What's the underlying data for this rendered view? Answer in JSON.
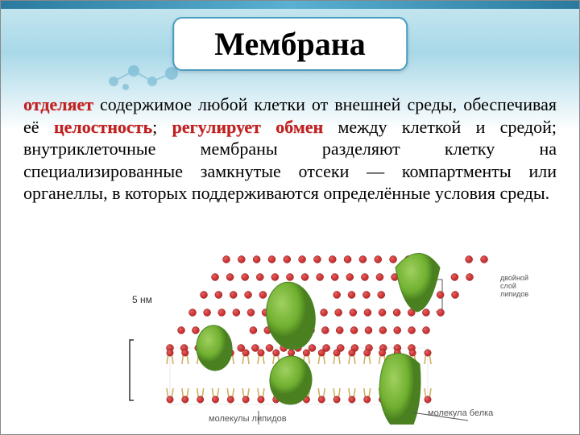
{
  "title": "Мембрана",
  "paragraph": {
    "seg1_hl": "отделяет",
    "seg2": "  содержимое  любой клетки от  внешней  среды, обеспечивая  её ",
    "seg3_hl": "целостность",
    "seg4": ";  ",
    "seg5_hl": "регулирует  обмен",
    "seg6": "  между клеткой и средой; внутриклеточные мембраны разделяют клетку   на    специализированные    замкнутые отсеки —  компартменты или органеллы, в которых поддерживаются определённые условия среды."
  },
  "diagram": {
    "scale_label": "5 нм",
    "label_lipid_bilayer": "двойной слой липидов",
    "label_lipid_molecules": "молекулы липидов",
    "label_protein_molecule": "молекула белка",
    "colors": {
      "lipid_head": "#c83030",
      "lipid_head_hl": "#e86060",
      "lipid_tail": "#d0b060",
      "protein_fill": "#70b030",
      "protein_hl": "#a0d060",
      "protein_dark": "#4a8020",
      "outline": "#888888"
    },
    "cols": 18,
    "rows": 6
  },
  "theme": {
    "title_border": "#4a9cc0",
    "highlight_text": "#c02020",
    "bg_top": "#a8d8e8"
  }
}
